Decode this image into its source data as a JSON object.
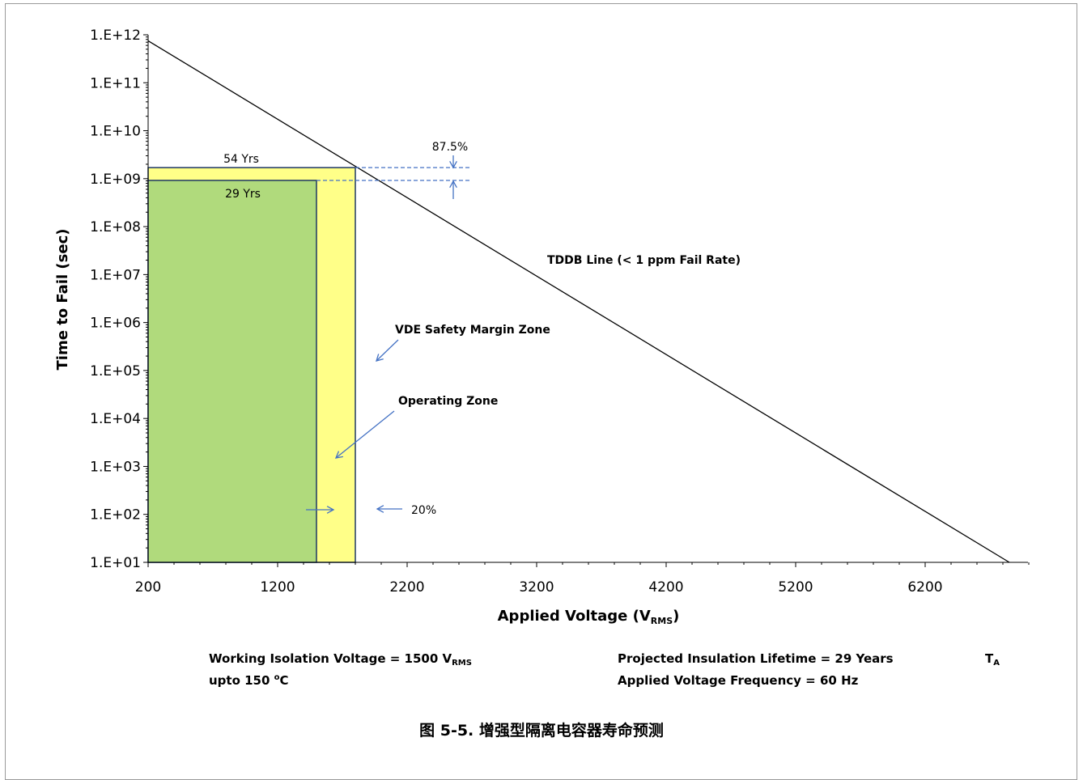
{
  "chart_data": {
    "type": "line",
    "title": "",
    "xlabel": "Applied Voltage (V",
    "xlabel_sub": "RMS",
    "xlabel_end": ")",
    "ylabel": "Time to Fail (sec)",
    "xlim": [
      200,
      7000
    ],
    "ylim_log10": [
      1,
      12
    ],
    "x_scale": "linear",
    "y_scale": "log",
    "x_ticks": [
      200,
      1200,
      2200,
      3200,
      4200,
      5200,
      6200
    ],
    "y_ticks": [
      "1.E+01",
      "1.E+02",
      "1.E+03",
      "1.E+04",
      "1.E+05",
      "1.E+06",
      "1.E+07",
      "1.E+08",
      "1.E+09",
      "1.E+10",
      "1.E+11",
      "1.E+12"
    ],
    "grid": false,
    "series": [
      {
        "name": "TDDB Line (< 1 ppm Fail Rate)",
        "x": [
          200,
          6850
        ],
        "y": [
          750000000000.0,
          10
        ],
        "color": "#000000"
      }
    ],
    "zones": [
      {
        "name": "Operating  Zone",
        "x": [
          200,
          1500
        ],
        "y": [
          10,
          920000000.0
        ],
        "color": "#b0da7c"
      },
      {
        "name": "VDE Safety Margin Zone",
        "x": [
          200,
          1800
        ],
        "y": [
          10,
          1700000000.0
        ],
        "color": "#ffff88"
      }
    ],
    "annotations": {
      "yrs54": "54 Yrs",
      "yrs29": "29 Yrs",
      "pct875": "87.5%",
      "pct20": "20%",
      "tddb": "TDDB Line (< 1 ppm Fail Rate)",
      "vde": "VDE Safety Margin Zone",
      "operating": "Operating  Zone"
    }
  },
  "footnotes": {
    "left_line1": "Working Isolation Voltage = 1500 V",
    "left_line1_sub": "RMS",
    "left_line2_a": "upto 150 ",
    "left_line2_sup": "o",
    "left_line2_b": "C",
    "right_line1": "Projected Insulation Lifetime =  29 Years",
    "right_line2": "Applied Voltage Frequency = 60 Hz",
    "ta": "T",
    "ta_sub": "A"
  },
  "caption": "图 5-5. 增强型隔离电容器寿命预测",
  "colors": {
    "operating": "#b0da7c",
    "margin": "#ffff88",
    "arrow": "#4472c4",
    "line": "#000000"
  }
}
